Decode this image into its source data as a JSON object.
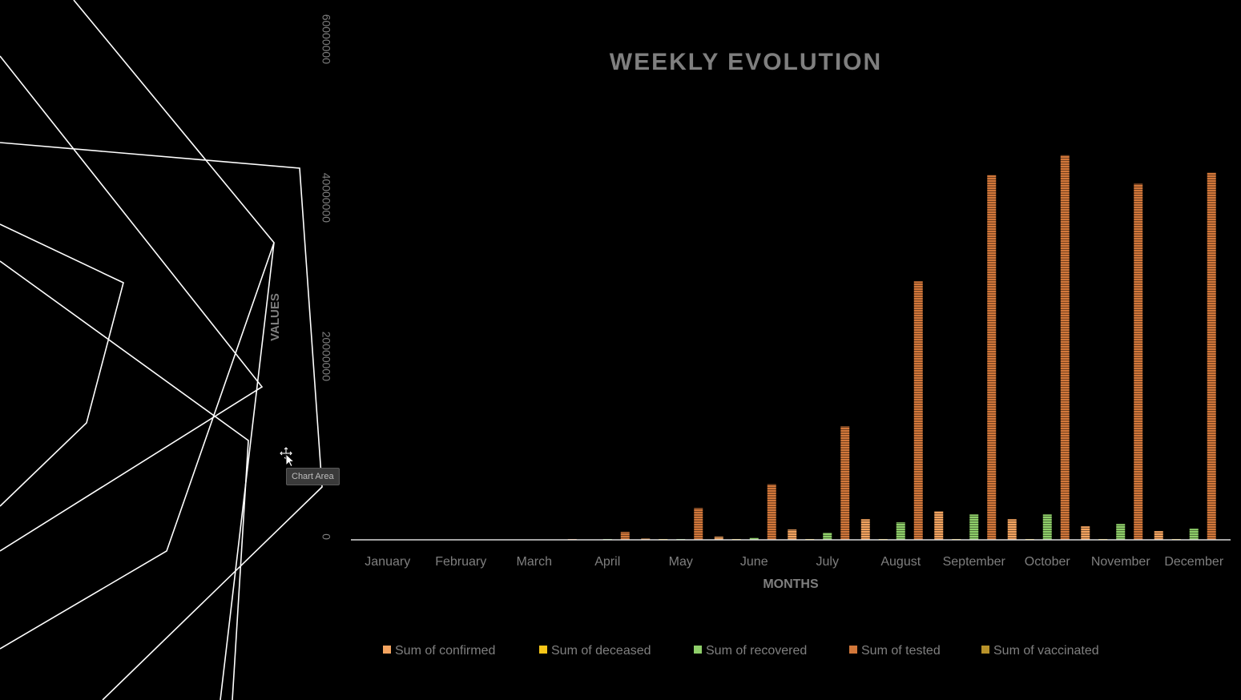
{
  "tooltip": {
    "text": "Chart Area"
  },
  "colors": {
    "background": "#000000",
    "title": "#7f7f7f",
    "axis_text": "#7f7f7f",
    "baseline": "#d9d9d9",
    "decoration": "#ffffff"
  },
  "chart_data": {
    "type": "bar",
    "title": "WEEKLY EVOLUTION",
    "xlabel": "MONTHS",
    "ylabel": "VALUES",
    "ylim": [
      0,
      60000000
    ],
    "yticks": [
      0,
      20000000,
      40000000,
      60000000
    ],
    "ytick_labels": [
      "0",
      "20000000",
      "40000000",
      "60000000"
    ],
    "legend_position": "bottom",
    "grid": false,
    "categories": [
      "January",
      "February",
      "March",
      "April",
      "May",
      "June",
      "July",
      "August",
      "September",
      "October",
      "November",
      "December"
    ],
    "series": [
      {
        "name": "Sum of confirmed",
        "color": "#f4a460",
        "values": [
          0,
          0,
          0,
          30000,
          150000,
          400000,
          1300000,
          2600000,
          3600000,
          2600000,
          1700000,
          1100000
        ]
      },
      {
        "name": "Sum of deceased",
        "color": "#f5c518",
        "values": [
          0,
          0,
          0,
          0,
          4000,
          10000,
          35000,
          55000,
          60000,
          45000,
          30000,
          15000
        ]
      },
      {
        "name": "Sum of recovered",
        "color": "#8fcf6a",
        "values": [
          0,
          0,
          0,
          10000,
          60000,
          250000,
          900000,
          2200000,
          3200000,
          3200000,
          2000000,
          1400000
        ]
      },
      {
        "name": "Sum of tested",
        "color": "#d2773a",
        "values": [
          0,
          0,
          0,
          1000000,
          4000000,
          7000000,
          14300000,
          32600000,
          46000000,
          48500000,
          44900000,
          46300000
        ]
      },
      {
        "name": "Sum of vaccinated",
        "color": "#b8922a",
        "values": [
          0,
          0,
          0,
          0,
          0,
          0,
          0,
          0,
          0,
          0,
          0,
          0
        ]
      }
    ]
  }
}
